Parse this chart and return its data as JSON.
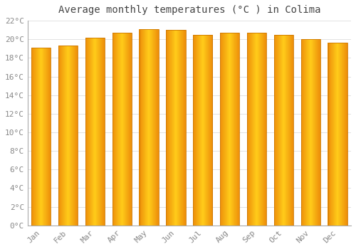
{
  "title": "Average monthly temperatures (°C ) in Colima",
  "months": [
    "Jan",
    "Feb",
    "Mar",
    "Apr",
    "May",
    "Jun",
    "Jul",
    "Aug",
    "Sep",
    "Oct",
    "Nov",
    "Dec"
  ],
  "temperatures": [
    19.1,
    19.3,
    20.2,
    20.7,
    21.1,
    21.0,
    20.5,
    20.7,
    20.7,
    20.5,
    20.0,
    19.6
  ],
  "ylim": [
    0,
    22
  ],
  "ytick_step": 2,
  "background_color": "#FFFFFF",
  "grid_color": "#DDDDDD",
  "title_fontsize": 10,
  "tick_fontsize": 8,
  "bar_center_color": "#FFCC00",
  "bar_edge_color": "#E8900A",
  "bar_border_color": "#CC7700"
}
